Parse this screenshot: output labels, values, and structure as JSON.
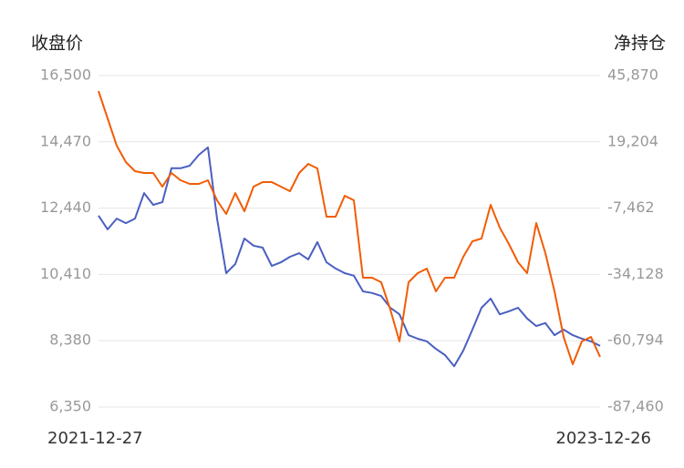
{
  "chart_data": {
    "type": "line",
    "ylabel": "收盘价",
    "y2label": "净持仓",
    "categories": [
      "2021-12-27",
      null,
      null,
      null,
      null,
      null,
      null,
      null,
      null,
      null,
      null,
      null,
      null,
      null,
      null,
      null,
      null,
      null,
      null,
      null,
      null,
      null,
      null,
      null,
      null,
      null,
      null,
      null,
      null,
      null,
      null,
      null,
      null,
      null,
      null,
      null,
      null,
      null,
      null,
      null,
      null,
      null,
      null,
      null,
      null,
      null,
      null,
      null,
      null,
      null,
      null,
      null,
      null,
      null,
      null,
      "2023-12-26"
    ],
    "series": [
      {
        "color": "#4a5fc1",
        "values": [
          12210,
          11790,
          12120,
          11980,
          12120,
          12900,
          12540,
          12620,
          13660,
          13660,
          13740,
          14070,
          14300,
          12120,
          10450,
          10730,
          11510,
          11290,
          11230,
          10670,
          10780,
          10950,
          11060,
          10870,
          11400,
          10780,
          10590,
          10450,
          10370,
          9890,
          9840,
          9750,
          9390,
          9190,
          8550,
          8440,
          8360,
          8130,
          7940,
          7600,
          8080,
          8720,
          9390,
          9670,
          9190,
          9280,
          9390,
          9060,
          8830,
          8920,
          8550,
          8720,
          8550,
          8440,
          8360,
          8220
        ]
      },
      {
        "color": "#f25c05",
        "axis": "y2",
        "values": [
          39640,
          28650,
          17670,
          11070,
          7410,
          6680,
          6680,
          1180,
          6680,
          3750,
          2280,
          2280,
          3750,
          -4310,
          -9810,
          -1380,
          -8710,
          1180,
          3010,
          3010,
          1180,
          -650,
          6680,
          10340,
          8510,
          -10910,
          -10910,
          -2480,
          -4310,
          -35450,
          -35450,
          -37280,
          -48270,
          -61090,
          -37280,
          -33620,
          -31790,
          -40940,
          -35450,
          -35450,
          -27020,
          -20800,
          -19700,
          -6150,
          -15300,
          -21900,
          -29220,
          -33620,
          -13470,
          -25560,
          -40940,
          -59260,
          -70250,
          -61090,
          -59260,
          -67320
        ]
      }
    ],
    "ylim": [
      6350,
      16500
    ],
    "yticks": [
      {
        "value": 6350,
        "label": "6,350"
      },
      {
        "value": 8380,
        "label": "8,380"
      },
      {
        "value": 10410,
        "label": "10,410"
      },
      {
        "value": 12440,
        "label": "12,440"
      },
      {
        "value": 14470,
        "label": "14,470"
      },
      {
        "value": 16500,
        "label": "16,500"
      }
    ],
    "y2lim": [
      -87460,
      45870
    ],
    "y2ticks": [
      {
        "value": -87460,
        "label": "-87,460"
      },
      {
        "value": -60794,
        "label": "-60,794"
      },
      {
        "value": -34128,
        "label": "-34,128"
      },
      {
        "value": -7462,
        "label": "-7,462"
      },
      {
        "value": 19204,
        "label": "19,204"
      },
      {
        "value": 45870,
        "label": "45,870"
      }
    ],
    "grid": true
  }
}
